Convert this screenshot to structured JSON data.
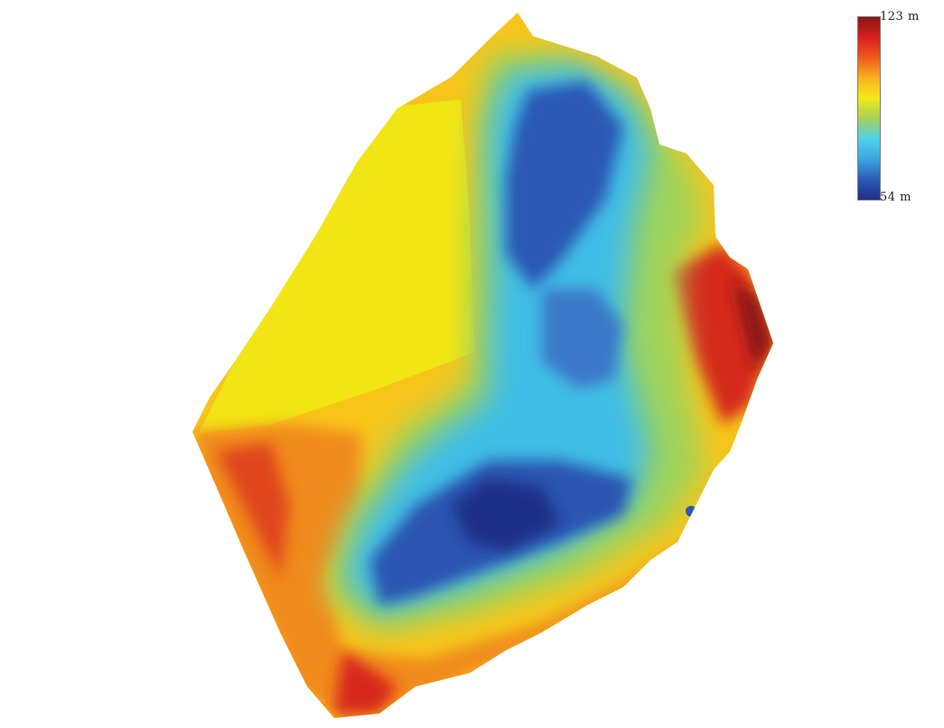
{
  "legend": {
    "max_label": "123 m",
    "min_label": "54 m",
    "max_value": 123,
    "min_value": 54,
    "unit": "m",
    "colormap": [
      "#1f2e86",
      "#2b5bb6",
      "#3aa6e0",
      "#4fd1ec",
      "#a6d05a",
      "#f2ea1a",
      "#f7b21e",
      "#ef5a1c",
      "#d6201f",
      "#8c1515"
    ]
  },
  "map": {
    "background_color": "#ffffff",
    "outline_color": "#f5b400"
  }
}
